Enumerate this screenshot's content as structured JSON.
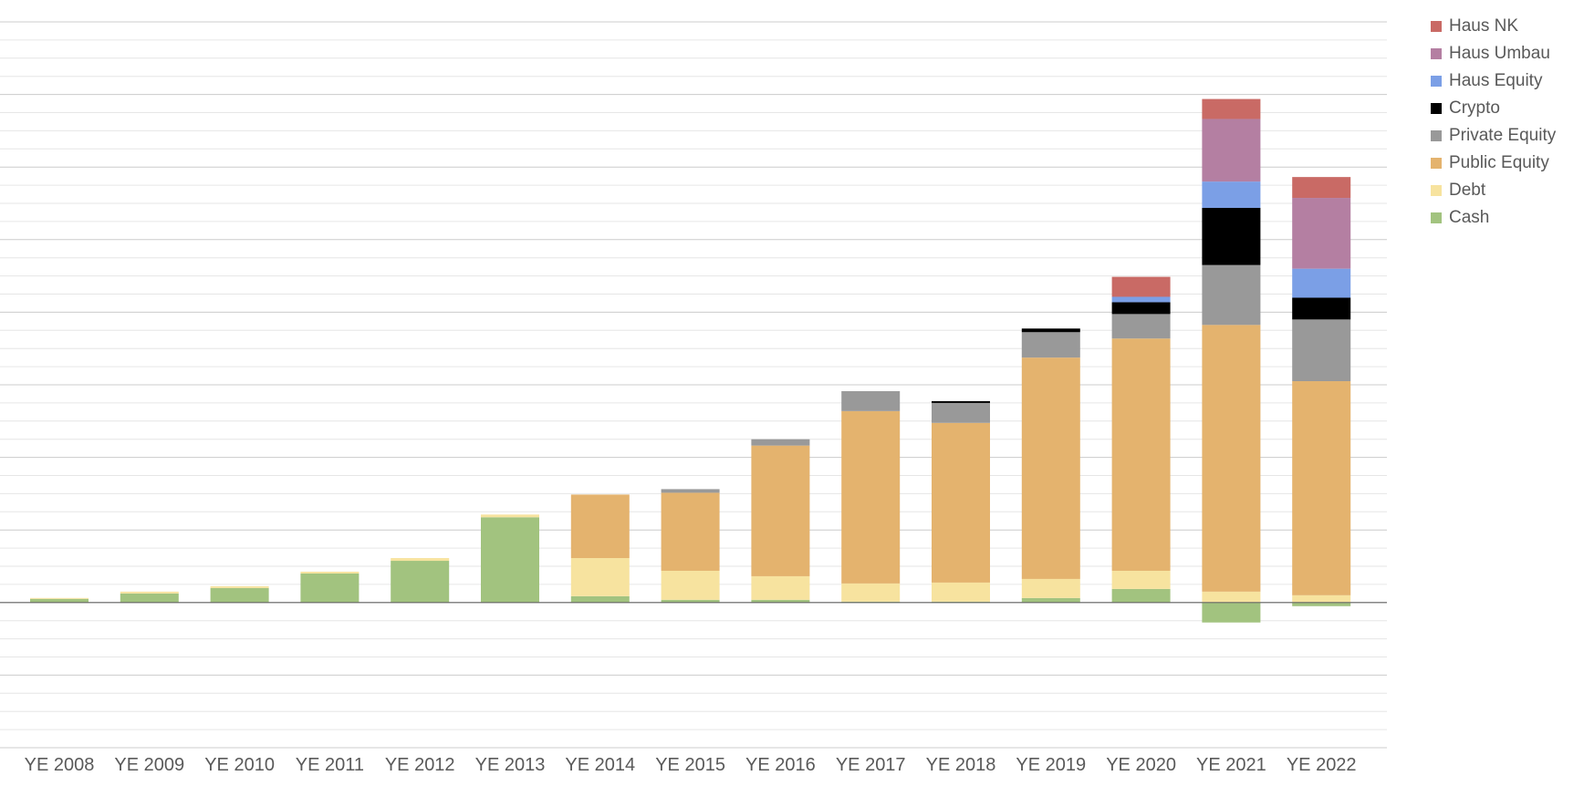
{
  "chart_data": {
    "type": "bar",
    "stacked": true,
    "title": "",
    "xlabel": "",
    "ylabel": "",
    "ylim": [
      -80,
      320
    ],
    "grid": true,
    "legend_position": "right",
    "categories": [
      "YE 2008",
      "YE 2009",
      "YE 2010",
      "YE 2011",
      "YE 2012",
      "YE 2013",
      "YE 2014",
      "YE 2015",
      "YE 2016",
      "YE 2017",
      "YE 2018",
      "YE 2019",
      "YE 2020",
      "YE 2021",
      "YE 2022"
    ],
    "series": [
      {
        "name": "Cash",
        "color": "#a2c37f",
        "values": [
          2,
          5,
          8,
          16,
          23,
          47,
          3.5,
          1.5,
          1.5,
          0.5,
          0.5,
          2.5,
          7.5,
          -11,
          -2
        ]
      },
      {
        "name": "Debt",
        "color": "#f7e39f",
        "values": [
          0.5,
          1,
          1,
          1,
          1.5,
          1.5,
          21,
          16,
          13,
          10,
          10.5,
          10.5,
          10,
          6,
          4
        ]
      },
      {
        "name": "Public Equity",
        "color": "#e4b36e",
        "values": [
          0,
          0,
          0,
          0,
          0,
          0,
          35,
          43,
          72,
          95,
          88,
          122,
          128,
          147,
          118
        ]
      },
      {
        "name": "Private Equity",
        "color": "#999999",
        "values": [
          0,
          0,
          0,
          0,
          0,
          0,
          0,
          2,
          3.5,
          11,
          11,
          14,
          13.5,
          33,
          34
        ]
      },
      {
        "name": "Crypto",
        "color": "#000000",
        "values": [
          0,
          0,
          0,
          0,
          0,
          0,
          0,
          0,
          0,
          0,
          1,
          2,
          6.5,
          31.5,
          12
        ]
      },
      {
        "name": "Haus Equity",
        "color": "#7b9fe6",
        "values": [
          0,
          0,
          0,
          0,
          0,
          0,
          0,
          0,
          0,
          0,
          0,
          0,
          3,
          14.5,
          16
        ]
      },
      {
        "name": "Haus Umbau",
        "color": "#b47fa2",
        "values": [
          0,
          0,
          0,
          0,
          0,
          0,
          0,
          0,
          0,
          0,
          0,
          0,
          0,
          34.5,
          39
        ]
      },
      {
        "name": "Haus NK",
        "color": "#c96a65",
        "values": [
          0,
          0,
          0,
          0,
          0,
          0,
          0,
          0,
          0,
          0,
          0,
          0,
          11,
          11,
          11.5
        ]
      }
    ]
  }
}
